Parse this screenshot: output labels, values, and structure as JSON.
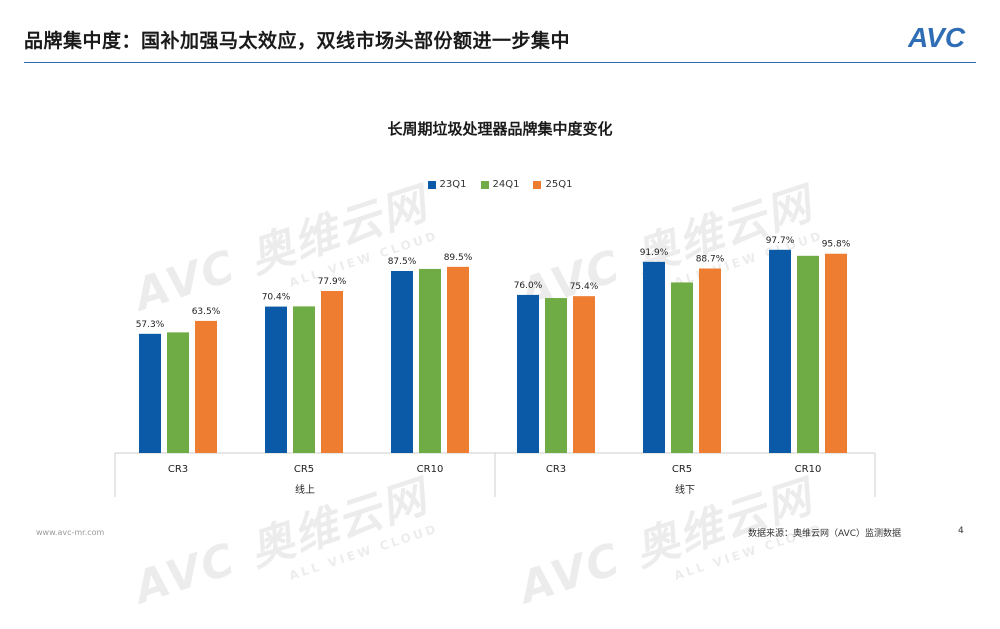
{
  "header": {
    "title": "品牌集中度：国补加强马太效应，双线市场头部份额进一步集中",
    "logo_text": "AVC",
    "accent_color": "#2f6db5"
  },
  "watermark": {
    "main": "AVC 奥维云网",
    "sub": "ALL VIEW CLOUD"
  },
  "chart_data": {
    "type": "bar",
    "title": "长周期垃圾处理器品牌集中度变化",
    "groups": [
      "线上",
      "线下"
    ],
    "categories": [
      "CR3",
      "CR5",
      "CR10",
      "CR3",
      "CR5",
      "CR10"
    ],
    "legend_position": "top-center",
    "grid": false,
    "ylim": [
      0,
      100
    ],
    "series": [
      {
        "name": "23Q1",
        "color": "#0b5aa8",
        "values": [
          57.3,
          70.4,
          87.5,
          76.0,
          91.9,
          97.7
        ],
        "labels": [
          "57.3%",
          "70.4%",
          "87.5%",
          "76.0%",
          "91.9%",
          "97.7%"
        ]
      },
      {
        "name": "24Q1",
        "color": "#6fac46",
        "values": [
          58.0,
          70.5,
          88.5,
          74.5,
          82.0,
          94.8
        ],
        "labels": [
          "",
          "",
          "",
          "",
          "",
          ""
        ]
      },
      {
        "name": "25Q1",
        "color": "#ee7d31",
        "values": [
          63.5,
          77.9,
          89.5,
          75.4,
          88.7,
          95.8
        ],
        "labels": [
          "63.5%",
          "77.9%",
          "89.5%",
          "75.4%",
          "88.7%",
          "95.8%"
        ]
      }
    ]
  },
  "footer": {
    "website": "www.avc-mr.com",
    "source": "数据来源：奥维云网（AVC）监测数据",
    "page": "4"
  }
}
